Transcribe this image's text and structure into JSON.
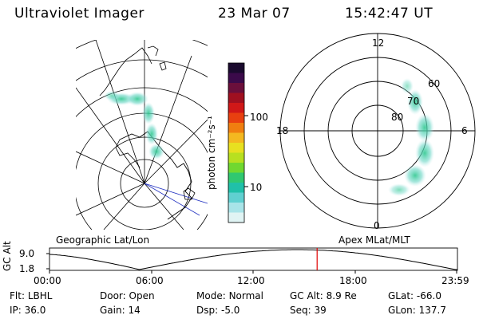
{
  "header": {
    "title": "Ultraviolet Imager",
    "date": "23 Mar 07",
    "time": "15:42:47 UT"
  },
  "colorbar": {
    "label": "photon cm⁻²s⁻¹",
    "ticks": [
      "100",
      "10"
    ],
    "colors": [
      "#1a0a2e",
      "#3b0a4a",
      "#6b0f3b",
      "#a01020",
      "#d01818",
      "#e84010",
      "#f07e10",
      "#f4b820",
      "#e8e020",
      "#b8e020",
      "#70d830",
      "#30c870",
      "#20c0a8",
      "#60d0d0",
      "#a8e4e8",
      "#e0f4f4"
    ]
  },
  "left_panel": {
    "caption": "Geographic Lat/Lon"
  },
  "right_panel": {
    "caption": "Apex MLat/MLT",
    "mlt_labels": {
      "top": "12",
      "left": "18",
      "right": "6",
      "bottom": "0"
    },
    "lat_labels": [
      "60",
      "70",
      "80"
    ]
  },
  "timeline": {
    "axis_label": "GC Alt",
    "y_ticks": [
      "9.0",
      "1.8"
    ],
    "x_ticks": [
      "00:00",
      "06:00",
      "12:00",
      "18:00",
      "23:59"
    ],
    "marker_color": "#e00000",
    "marker_fraction": 0.656
  },
  "status": {
    "row1": [
      {
        "key": "Flt:",
        "value": "LBHL"
      },
      {
        "key": "Door:",
        "value": "Open"
      },
      {
        "key": "Mode:",
        "value": "Normal"
      },
      {
        "key": "GC Alt:",
        "value": "8.9 Re"
      },
      {
        "key": "GLat:",
        "value": "-66.0"
      }
    ],
    "row2": [
      {
        "key": "IP:",
        "value": "36.0"
      },
      {
        "key": "Gain:",
        "value": "14"
      },
      {
        "key": "Dsp:",
        "value": "-5.0"
      },
      {
        "key": "Seq:",
        "value": "39"
      },
      {
        "key": "GLon:",
        "value": "137.7"
      }
    ]
  }
}
